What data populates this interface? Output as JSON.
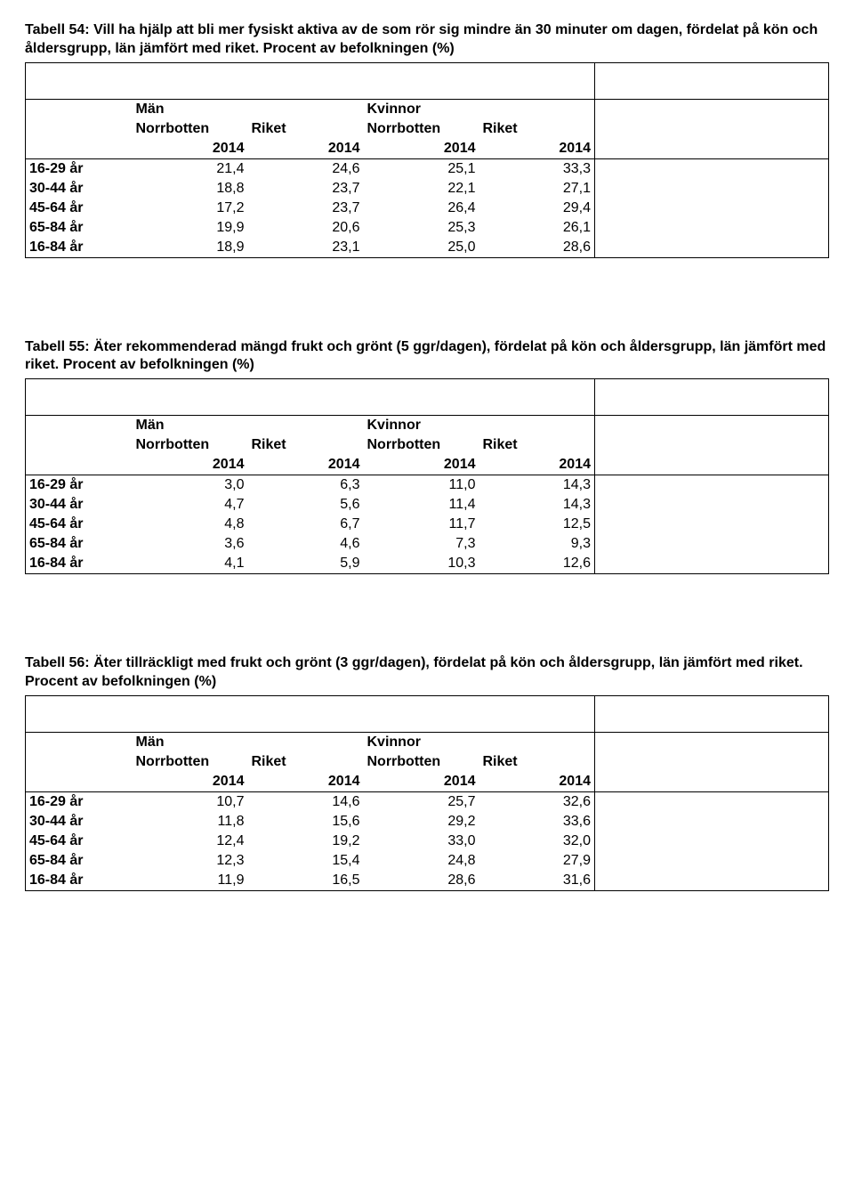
{
  "tables": [
    {
      "caption": "Tabell 54: Vill ha hjälp att bli mer fysiskt aktiva av de som rör sig mindre än 30 minuter om dagen, fördelat på kön och åldersgrupp, län jämfört med riket. Procent av befolkningen (%)",
      "gender_headers": [
        "Män",
        "Kvinnor"
      ],
      "region_headers": [
        "Norrbotten",
        "Riket",
        "Norrbotten",
        "Riket"
      ],
      "year_headers": [
        "2014",
        "2014",
        "2014",
        "2014"
      ],
      "rows": [
        {
          "label": "16-29 år",
          "vals": [
            "21,4",
            "24,6",
            "25,1",
            "33,3"
          ]
        },
        {
          "label": "30-44 år",
          "vals": [
            "18,8",
            "23,7",
            "22,1",
            "27,1"
          ]
        },
        {
          "label": "45-64 år",
          "vals": [
            "17,2",
            "23,7",
            "26,4",
            "29,4"
          ]
        },
        {
          "label": "65-84 år",
          "vals": [
            "19,9",
            "20,6",
            "25,3",
            "26,1"
          ]
        },
        {
          "label": "16-84 år",
          "vals": [
            "18,9",
            "23,1",
            "25,0",
            "28,6"
          ]
        }
      ]
    },
    {
      "caption": "Tabell 55: Äter rekommenderad mängd frukt och grönt (5 ggr/dagen), fördelat på kön och åldersgrupp, län jämfört med riket. Procent av befolkningen (%)",
      "gender_headers": [
        "Män",
        "Kvinnor"
      ],
      "region_headers": [
        "Norrbotten",
        "Riket",
        "Norrbotten",
        "Riket"
      ],
      "year_headers": [
        "2014",
        "2014",
        "2014",
        "2014"
      ],
      "rows": [
        {
          "label": "16-29 år",
          "vals": [
            "3,0",
            "6,3",
            "11,0",
            "14,3"
          ]
        },
        {
          "label": "30-44 år",
          "vals": [
            "4,7",
            "5,6",
            "11,4",
            "14,3"
          ]
        },
        {
          "label": "45-64 år",
          "vals": [
            "4,8",
            "6,7",
            "11,7",
            "12,5"
          ]
        },
        {
          "label": "65-84 år",
          "vals": [
            "3,6",
            "4,6",
            "7,3",
            "9,3"
          ]
        },
        {
          "label": "16-84 år",
          "vals": [
            "4,1",
            "5,9",
            "10,3",
            "12,6"
          ]
        }
      ]
    },
    {
      "caption": "Tabell 56: Äter tillräckligt med frukt och grönt (3 ggr/dagen), fördelat på kön och åldersgrupp, län jämfört med riket. Procent av befolkningen (%)",
      "gender_headers": [
        "Män",
        "Kvinnor"
      ],
      "region_headers": [
        "Norrbotten",
        "Riket",
        "Norrbotten",
        "Riket"
      ],
      "year_headers": [
        "2014",
        "2014",
        "2014",
        "2014"
      ],
      "rows": [
        {
          "label": "16-29 år",
          "vals": [
            "10,7",
            "14,6",
            "25,7",
            "32,6"
          ]
        },
        {
          "label": "30-44 år",
          "vals": [
            "11,8",
            "15,6",
            "29,2",
            "33,6"
          ]
        },
        {
          "label": "45-64 år",
          "vals": [
            "12,4",
            "19,2",
            "33,0",
            "32,0"
          ]
        },
        {
          "label": "65-84 år",
          "vals": [
            "12,3",
            "15,4",
            "24,8",
            "27,9"
          ]
        },
        {
          "label": "16-84 år",
          "vals": [
            "11,9",
            "16,5",
            "28,6",
            "31,6"
          ]
        }
      ]
    }
  ]
}
